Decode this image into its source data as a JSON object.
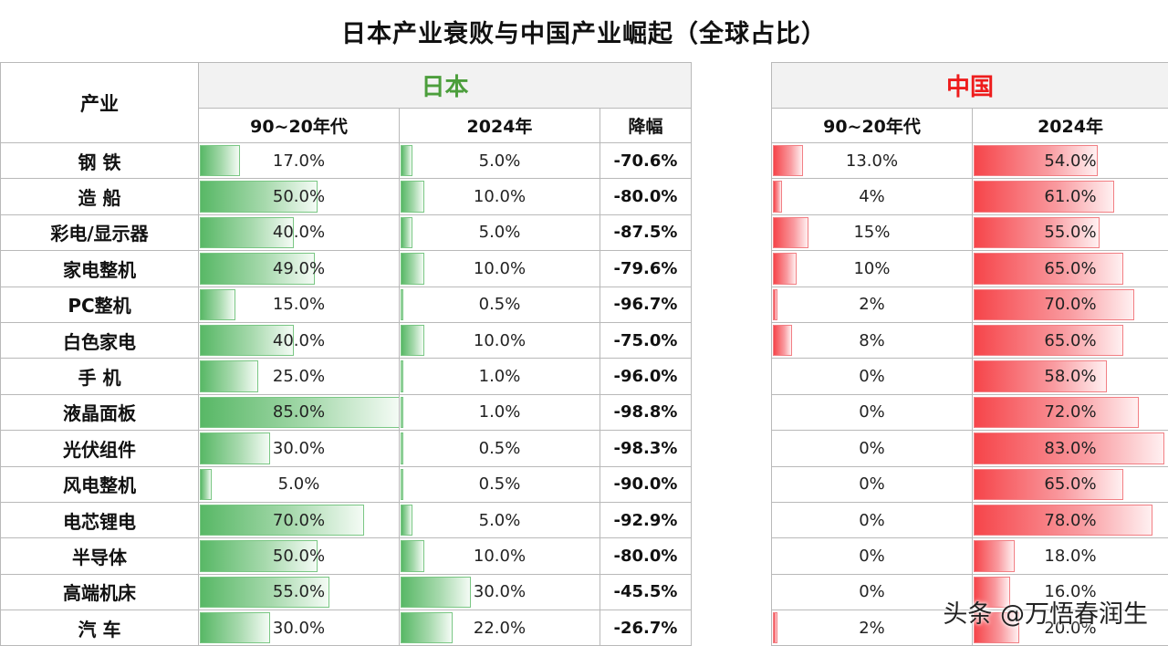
{
  "title": "日本产业衰败与中国产业崛起（全球占比）",
  "headers": {
    "industry": "产业",
    "japan": "日本",
    "china": "中国",
    "jp_col1": "90~20年代",
    "jp_col2": "2024年",
    "jp_col3": "降幅",
    "cn_col1": "90~20年代",
    "cn_col2": "2024年"
  },
  "colors": {
    "japan": "#4c9e3c",
    "china": "#ee1c1c"
  },
  "watermark": "头条 @万悟春润生",
  "chart_data": {
    "type": "table",
    "title": "日本产业衰败与中国产业崛起（全球占比）",
    "rows": [
      {
        "industry": "钢  铁",
        "jp_past": "17.0%",
        "jp_2024": "5.0%",
        "jp_drop": "-70.6%",
        "cn_past": "13.0%",
        "cn_2024": "54.0%",
        "v": [
          17,
          5,
          13,
          54
        ]
      },
      {
        "industry": "造  船",
        "jp_past": "50.0%",
        "jp_2024": "10.0%",
        "jp_drop": "-80.0%",
        "cn_past": "4%",
        "cn_2024": "61.0%",
        "v": [
          50,
          10,
          4,
          61
        ]
      },
      {
        "industry": "彩电/显示器",
        "jp_past": "40.0%",
        "jp_2024": "5.0%",
        "jp_drop": "-87.5%",
        "cn_past": "15%",
        "cn_2024": "55.0%",
        "v": [
          40,
          5,
          15,
          55
        ]
      },
      {
        "industry": "家电整机",
        "jp_past": "49.0%",
        "jp_2024": "10.0%",
        "jp_drop": "-79.6%",
        "cn_past": "10%",
        "cn_2024": "65.0%",
        "v": [
          49,
          10,
          10,
          65
        ]
      },
      {
        "industry": "PC整机",
        "jp_past": "15.0%",
        "jp_2024": "0.5%",
        "jp_drop": "-96.7%",
        "cn_past": "2%",
        "cn_2024": "70.0%",
        "v": [
          15,
          0.5,
          2,
          70
        ]
      },
      {
        "industry": "白色家电",
        "jp_past": "40.0%",
        "jp_2024": "10.0%",
        "jp_drop": "-75.0%",
        "cn_past": "8%",
        "cn_2024": "65.0%",
        "v": [
          40,
          10,
          8,
          65
        ]
      },
      {
        "industry": "手  机",
        "jp_past": "25.0%",
        "jp_2024": "1.0%",
        "jp_drop": "-96.0%",
        "cn_past": "0%",
        "cn_2024": "58.0%",
        "v": [
          25,
          1,
          0,
          58
        ]
      },
      {
        "industry": "液晶面板",
        "jp_past": "85.0%",
        "jp_2024": "1.0%",
        "jp_drop": "-98.8%",
        "cn_past": "0%",
        "cn_2024": "72.0%",
        "v": [
          85,
          1,
          0,
          72
        ]
      },
      {
        "industry": "光伏组件",
        "jp_past": "30.0%",
        "jp_2024": "0.5%",
        "jp_drop": "-98.3%",
        "cn_past": "0%",
        "cn_2024": "83.0%",
        "v": [
          30,
          0.5,
          0,
          83
        ]
      },
      {
        "industry": "风电整机",
        "jp_past": "5.0%",
        "jp_2024": "0.5%",
        "jp_drop": "-90.0%",
        "cn_past": "0%",
        "cn_2024": "65.0%",
        "v": [
          5,
          0.5,
          0,
          65
        ]
      },
      {
        "industry": "电芯锂电",
        "jp_past": "70.0%",
        "jp_2024": "5.0%",
        "jp_drop": "-92.9%",
        "cn_past": "0%",
        "cn_2024": "78.0%",
        "v": [
          70,
          5,
          0,
          78
        ]
      },
      {
        "industry": "半导体",
        "jp_past": "50.0%",
        "jp_2024": "10.0%",
        "jp_drop": "-80.0%",
        "cn_past": "0%",
        "cn_2024": "18.0%",
        "v": [
          50,
          10,
          0,
          18
        ]
      },
      {
        "industry": "高端机床",
        "jp_past": "55.0%",
        "jp_2024": "30.0%",
        "jp_drop": "-45.5%",
        "cn_past": "0%",
        "cn_2024": "16.0%",
        "v": [
          55,
          30,
          0,
          16
        ]
      },
      {
        "industry": "汽  车",
        "jp_past": "30.0%",
        "jp_2024": "22.0%",
        "jp_drop": "-26.7%",
        "cn_past": "2%",
        "cn_2024": "20.0%",
        "v": [
          30,
          22,
          2,
          20
        ]
      }
    ]
  }
}
